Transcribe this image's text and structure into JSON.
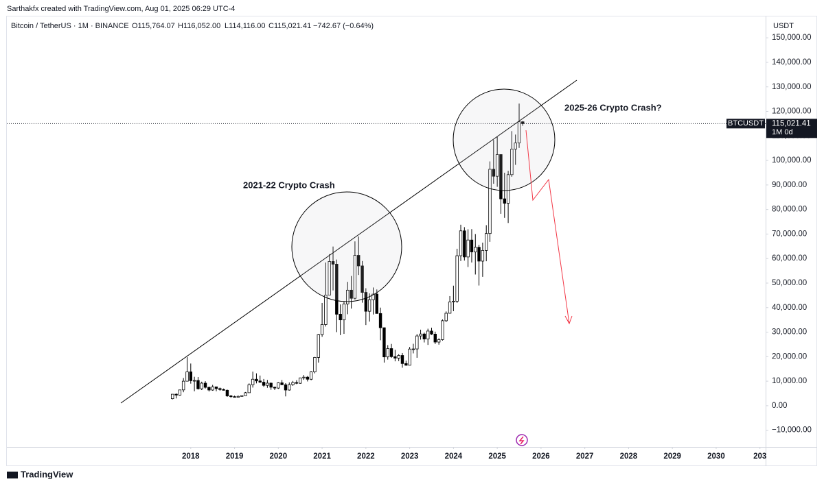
{
  "credit": "Sarthakfx created with TradingView.com, Aug 01, 2025 06:29 UTC-4",
  "symbol": "Bitcoin / TetherUS · 1M · BINANCE",
  "ohlc": [
    "O115,764.07",
    "H116,052.00",
    "L114,116.00",
    "C115,021.41",
    "−742.67 (−0.64%)"
  ],
  "brand": "TradingView",
  "chart_data": {
    "type": "candlestick",
    "y_unit": "USDT",
    "annotations": [
      "2021-22 Crypto Crash",
      "2025-26 Crypto Crash?"
    ],
    "up_color": "#ffffff",
    "down_color": "#000000",
    "wick_color": "#000000",
    "xlim": [
      2013.8,
      2031.13
    ],
    "xticks": [
      2018,
      2019,
      2020,
      2021,
      2022,
      2023,
      2024,
      2025,
      2026,
      2027,
      2028,
      2029,
      2030,
      {
        "value": 2031,
        "label": "203"
      }
    ],
    "ylim": [
      -16800,
      152000
    ],
    "yticks": [
      {
        "value": -10000,
        "label": "−10,000.00"
      },
      {
        "value": 0,
        "label": "0.00"
      },
      {
        "value": 10000,
        "label": "10,000.00"
      },
      {
        "value": 20000,
        "label": "20,000.00"
      },
      {
        "value": 30000,
        "label": "30,000.00"
      },
      {
        "value": 40000,
        "label": "40,000.00"
      },
      {
        "value": 50000,
        "label": "50,000.00"
      },
      {
        "value": 60000,
        "label": "60,000.00"
      },
      {
        "value": 70000,
        "label": "70,000.00"
      },
      {
        "value": 80000,
        "label": "80,000.00"
      },
      {
        "value": 90000,
        "label": "90,000.00"
      },
      {
        "value": 100000,
        "label": "100,000.00"
      },
      {
        "value": 110000,
        "label": "110,000.00"
      },
      {
        "value": 120000,
        "label": "120,000.00"
      },
      {
        "value": 130000,
        "label": "130,000.00"
      },
      {
        "value": 140000,
        "label": "140,000.00"
      },
      {
        "value": 150000,
        "label": "150,000.00"
      }
    ],
    "price_line": {
      "symbol": "BTCUSDT",
      "value": 115021.41,
      "label": "115,021.41",
      "countdown": "1M 0d"
    },
    "x": [
      2017.583,
      2017.667,
      2017.75,
      2017.833,
      2017.917,
      2018,
      2018.083,
      2018.167,
      2018.25,
      2018.333,
      2018.417,
      2018.5,
      2018.583,
      2018.667,
      2018.75,
      2018.833,
      2018.917,
      2019,
      2019.083,
      2019.167,
      2019.25,
      2019.333,
      2019.417,
      2019.5,
      2019.583,
      2019.667,
      2019.75,
      2019.833,
      2019.917,
      2020,
      2020.083,
      2020.167,
      2020.25,
      2020.333,
      2020.417,
      2020.5,
      2020.583,
      2020.667,
      2020.75,
      2020.833,
      2020.917,
      2021,
      2021.083,
      2021.167,
      2021.25,
      2021.333,
      2021.417,
      2021.5,
      2021.583,
      2021.667,
      2021.75,
      2021.833,
      2021.917,
      2022,
      2022.083,
      2022.167,
      2022.25,
      2022.333,
      2022.417,
      2022.5,
      2022.583,
      2022.667,
      2022.75,
      2022.833,
      2022.917,
      2023,
      2023.083,
      2023.167,
      2023.25,
      2023.333,
      2023.417,
      2023.5,
      2023.583,
      2023.667,
      2023.75,
      2023.833,
      2023.917,
      2024,
      2024.083,
      2024.167,
      2024.25,
      2024.333,
      2024.417,
      2024.5,
      2024.583,
      2024.667,
      2024.75,
      2024.833,
      2024.917,
      2025,
      2025.083,
      2025.167,
      2025.25,
      2025.333,
      2025.417,
      2025.5,
      2025.583
    ],
    "open": [
      2870,
      4700,
      4340,
      6450,
      10000,
      13800,
      10200,
      10300,
      6900,
      9200,
      7500,
      6400,
      7700,
      7000,
      6600,
      6300,
      4000,
      3700,
      3450,
      3800,
      4100,
      5300,
      8550,
      10800,
      10100,
      9600,
      8300,
      9200,
      7550,
      7200,
      9350,
      8550,
      6400,
      8600,
      9450,
      9150,
      11350,
      11650,
      10800,
      13800,
      19700,
      29000,
      33100,
      45100,
      58800,
      57700,
      37300,
      35000,
      41500,
      47100,
      43800,
      61300,
      57000,
      46200,
      38500,
      43200,
      45500,
      37600,
      31800,
      19900,
      23300,
      20000,
      19400,
      20500,
      17200,
      16500,
      23100,
      23150,
      28450,
      29250,
      27200,
      30450,
      29200,
      25950,
      26950,
      34650,
      37700,
      42300,
      42600,
      61150,
      71300,
      60650,
      67550,
      62700,
      64600,
      58950,
      63300,
      70200,
      96400,
      93550,
      102400,
      84350,
      82550,
      94200,
      104600,
      107150,
      115764.07
    ],
    "high": [
      4740,
      5000,
      6470,
      11300,
      19800,
      17200,
      11800,
      11700,
      9800,
      10000,
      7800,
      8500,
      7800,
      7400,
      7000,
      6600,
      4400,
      4100,
      4200,
      4150,
      5600,
      9100,
      13900,
      13200,
      12300,
      10900,
      10500,
      9500,
      7750,
      9600,
      10500,
      9200,
      9500,
      10100,
      10400,
      11450,
      12500,
      12100,
      14100,
      19900,
      29300,
      41900,
      58400,
      61800,
      64900,
      59600,
      41300,
      42400,
      50500,
      52900,
      67000,
      69000,
      59000,
      47900,
      45800,
      48200,
      47400,
      40000,
      31900,
      24700,
      25200,
      22800,
      21000,
      21500,
      18400,
      23950,
      25250,
      29200,
      31000,
      29800,
      31400,
      31800,
      30200,
      27500,
      35200,
      38450,
      44700,
      48950,
      64000,
      73800,
      72800,
      71950,
      72000,
      70000,
      65600,
      66500,
      73600,
      99600,
      108350,
      109600,
      102500,
      95000,
      95750,
      111950,
      110550,
      123200,
      116052
    ],
    "low": [
      2580,
      2970,
      4110,
      5500,
      10800,
      9000,
      5900,
      6600,
      6400,
      7000,
      5800,
      6100,
      5900,
      6100,
      6200,
      3600,
      3200,
      3350,
      3400,
      3700,
      4050,
      5300,
      7400,
      9100,
      9300,
      7700,
      7300,
      6500,
      6400,
      6850,
      8400,
      3800,
      6150,
      8100,
      8800,
      8950,
      10550,
      9900,
      10400,
      13200,
      17600,
      28100,
      32300,
      45000,
      47000,
      30000,
      28800,
      29300,
      37300,
      39600,
      43300,
      53300,
      42000,
      32900,
      34300,
      37200,
      37600,
      26700,
      17600,
      18800,
      19500,
      18100,
      18200,
      15500,
      16300,
      16500,
      21350,
      19550,
      26950,
      25800,
      24800,
      28850,
      25150,
      24900,
      26550,
      34100,
      37600,
      38550,
      41900,
      59000,
      59200,
      56550,
      58400,
      53500,
      49000,
      52550,
      58900,
      66800,
      90500,
      89250,
      78250,
      76600,
      74500,
      93350,
      98200,
      105100,
      114116
    ],
    "close": [
      4700,
      4340,
      6450,
      10000,
      13800,
      10200,
      10300,
      6900,
      9200,
      7500,
      6400,
      7700,
      7000,
      6600,
      6300,
      4000,
      3700,
      3450,
      3800,
      4100,
      5300,
      8550,
      10800,
      10100,
      9600,
      8300,
      9200,
      7550,
      7200,
      9350,
      8550,
      6400,
      8600,
      9450,
      9150,
      11350,
      11650,
      10800,
      13800,
      19700,
      29000,
      33100,
      45100,
      58800,
      57700,
      37300,
      35000,
      41500,
      47100,
      43800,
      61300,
      57000,
      46200,
      38500,
      43200,
      45500,
      37600,
      31800,
      19900,
      23300,
      20000,
      19400,
      20500,
      17200,
      16500,
      23100,
      23150,
      28450,
      29250,
      27200,
      30450,
      29200,
      25950,
      26950,
      34650,
      37700,
      42300,
      42600,
      61150,
      71300,
      60650,
      67550,
      62700,
      64600,
      58950,
      63300,
      70200,
      96400,
      93550,
      102400,
      84350,
      82550,
      94200,
      104600,
      107150,
      115750,
      115021.41
    ]
  }
}
